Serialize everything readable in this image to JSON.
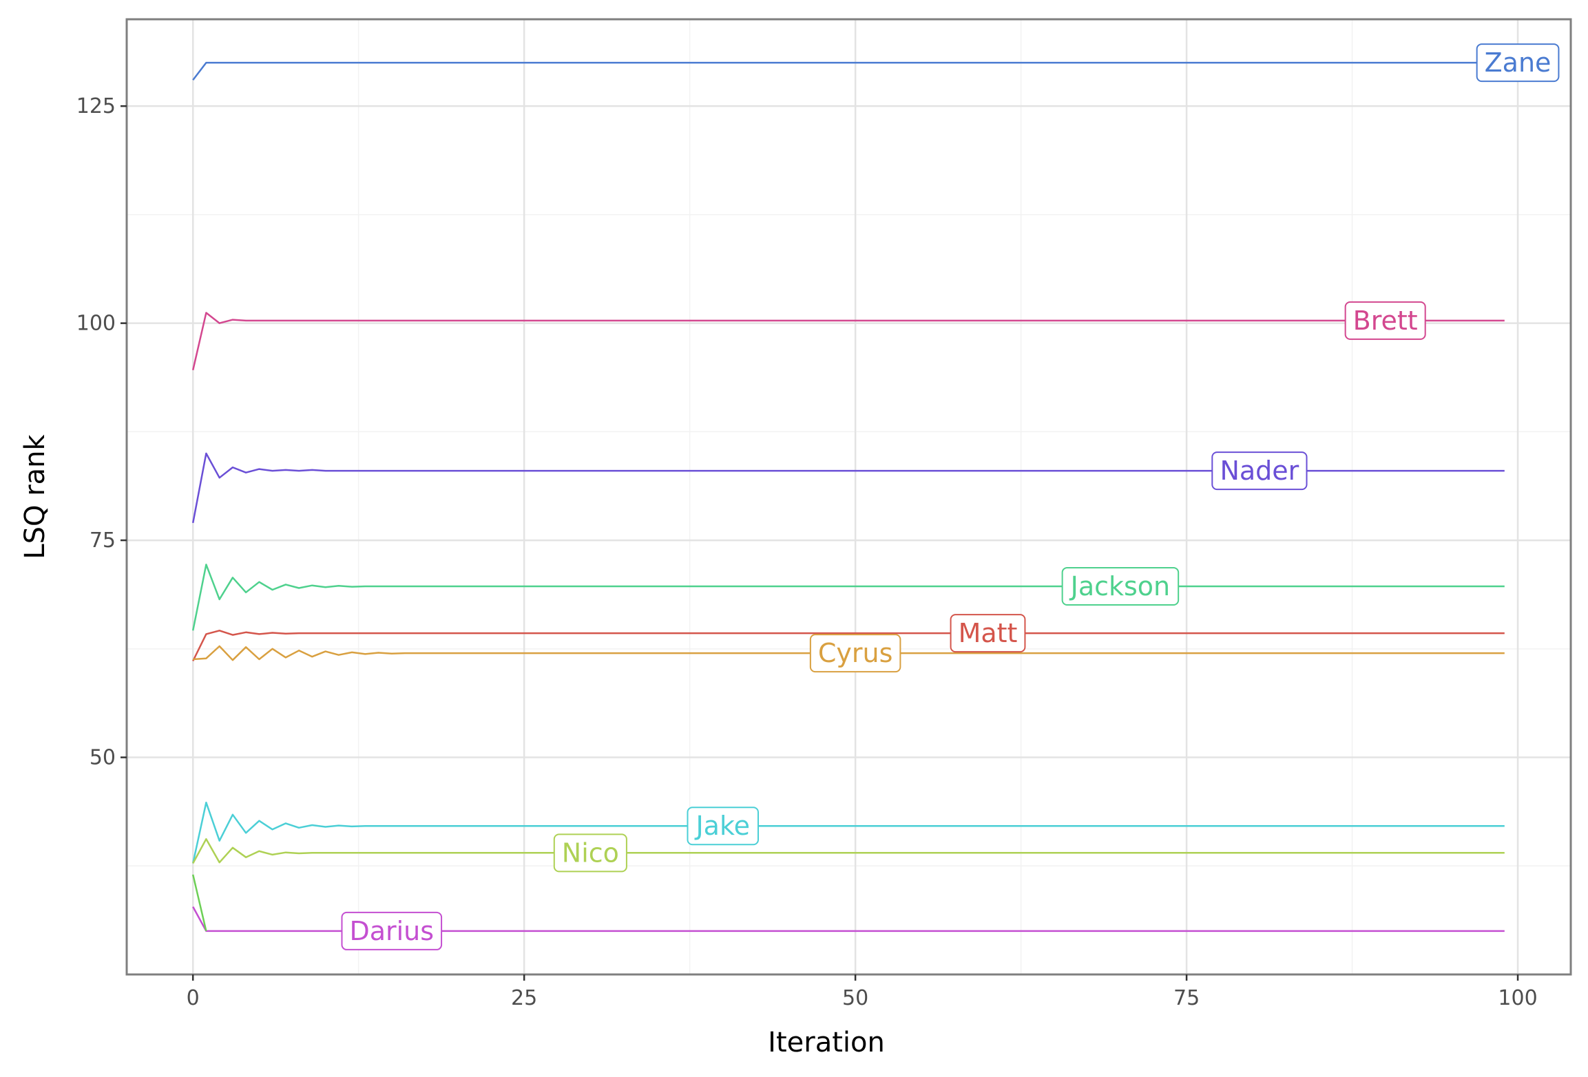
{
  "chart_data": {
    "type": "line",
    "title": "",
    "xlabel": "Iteration",
    "ylabel": "LSQ rank",
    "xlim": [
      -5,
      104
    ],
    "ylim": [
      25,
      135
    ],
    "x_ticks": [
      0,
      25,
      50,
      75,
      100
    ],
    "x_tick_labels": [
      "0",
      "25",
      "50",
      "75",
      "100"
    ],
    "y_ticks": [
      50,
      75,
      100,
      125
    ],
    "y_tick_labels": [
      "50",
      "75",
      "100",
      "125"
    ],
    "grid": true,
    "legend": "none (direct labels)",
    "last_x": 99,
    "series": [
      {
        "name": "Zane",
        "color": "#4a7bd1",
        "label_x": 100,
        "start": [
          128,
          130
        ],
        "osc": [],
        "final": 130
      },
      {
        "name": "Brett",
        "color": "#d3478f",
        "label_x": 90,
        "start": [
          94.6,
          101.2,
          100.0,
          100.4
        ],
        "osc": [],
        "final": 100.3
      },
      {
        "name": "Nader",
        "color": "#6a4fd6",
        "label_x": 80.5,
        "start": [
          77,
          85.0,
          82.2
        ],
        "osc": [
          83.4,
          82.8,
          83.2,
          83.0,
          83.1,
          83.0,
          83.1,
          83.0
        ],
        "final": 83.0
      },
      {
        "name": "Jackson",
        "color": "#4ed18d",
        "label_x": 70,
        "start": [
          64.6,
          72.2,
          68.2
        ],
        "osc": [
          70.7,
          69.0,
          70.2,
          69.3,
          69.9,
          69.5,
          69.8,
          69.6,
          69.75,
          69.65
        ],
        "final": 69.7
      },
      {
        "name": "Matt",
        "color": "#d4554b",
        "label_x": 60,
        "start": [
          61.1,
          64.2,
          64.6
        ],
        "osc": [
          64.1,
          64.4,
          64.2,
          64.35,
          64.25,
          64.3
        ],
        "final": 64.3
      },
      {
        "name": "Cyrus",
        "color": "#d9a040",
        "label_x": 50,
        "start": [
          61.3,
          61.4,
          62.8
        ],
        "osc": [
          61.2,
          62.7,
          61.3,
          62.5,
          61.5,
          62.3,
          61.6,
          62.2,
          61.8,
          62.1,
          61.9,
          62.05,
          61.95
        ],
        "final": 62.0
      },
      {
        "name": "Jake",
        "color": "#4bcfd6",
        "label_x": 40,
        "start": [
          37.8,
          44.8,
          40.4
        ],
        "osc": [
          43.4,
          41.3,
          42.7,
          41.7,
          42.4,
          41.9,
          42.2,
          42.0,
          42.15,
          42.05
        ],
        "final": 42.1
      },
      {
        "name": "Nico",
        "color": "#aed154",
        "label_x": 30,
        "start": [
          37.8,
          40.6,
          37.9
        ],
        "osc": [
          39.6,
          38.5,
          39.2,
          38.8,
          39.05,
          38.95
        ],
        "final": 39.0
      },
      {
        "name": "Darius",
        "color": "#c44fd1",
        "label_x": 15,
        "start": [
          32.8,
          30.0
        ],
        "osc": [],
        "final": 30.0
      }
    ],
    "extra_segments": [
      {
        "color": "#6ccf55",
        "x": [
          0,
          1
        ],
        "y": [
          36.5,
          30.0
        ]
      }
    ]
  }
}
